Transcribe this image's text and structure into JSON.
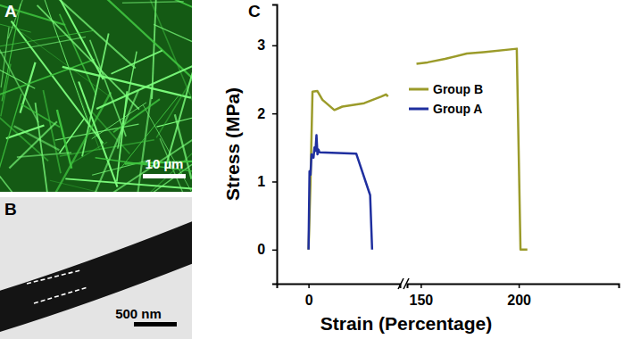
{
  "panels": [
    {
      "label": "A",
      "scale_bar": "10 µm"
    },
    {
      "label": "B",
      "scale_bar": "500 nm"
    },
    {
      "label": "C"
    }
  ],
  "chart_data": {
    "type": "line",
    "x_label": "Strain (Percentage)",
    "y_label": "Stress (MPa)",
    "xlim": [
      [
        -16,
        46
      ],
      [
        143,
        251
      ]
    ],
    "xticks": [
      0,
      150,
      200
    ],
    "ylim": [
      -0.5,
      3.6
    ],
    "yticks": [
      0,
      1,
      2,
      3
    ],
    "legend": "top",
    "series": [
      {
        "name": "Group B",
        "color": "#9b9b2a",
        "x": [
          0,
          1,
          2,
          4.4,
          7,
          13,
          17,
          28,
          36.7,
          39,
          40,
          null,
          147.8,
          153.5,
          162.4,
          173.5,
          182,
          199,
          200.9,
          204.4
        ],
        "values": [
          0,
          1,
          2.32,
          2.33,
          2.2,
          2.05,
          2.1,
          2.15,
          2.25,
          2.28,
          2.25,
          null,
          2.73,
          2.75,
          2.8,
          2.88,
          2.9,
          2.95,
          0,
          0
        ]
      },
      {
        "name": "Group A",
        "color": "#1f2f9f",
        "x": [
          0,
          0.5,
          1,
          1.5,
          2.5,
          3,
          3.5,
          4,
          4.5,
          5,
          5.5,
          24,
          31,
          32
        ],
        "values": [
          0,
          1.15,
          1.1,
          1.4,
          1.35,
          1.5,
          1.45,
          1.68,
          1.4,
          1.47,
          1.43,
          1.41,
          0.8,
          0
        ]
      }
    ]
  }
}
